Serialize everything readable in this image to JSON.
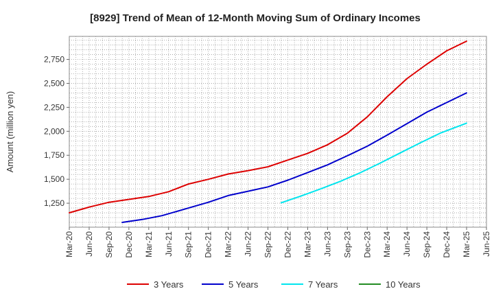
{
  "chart_data": {
    "type": "line",
    "title": "[8929]  Trend of Mean of 12-Month Moving Sum of Ordinary Incomes",
    "xlabel": "",
    "ylabel": "Amount (million yen)",
    "ylim": [
      1000,
      2990
    ],
    "yticks": [
      1250,
      1500,
      1750,
      2000,
      2250,
      2500,
      2750
    ],
    "ytick_labels": [
      "1,250",
      "1,500",
      "1,750",
      "2,000",
      "2,250",
      "2,500",
      "2,750"
    ],
    "xlim": [
      0,
      63
    ],
    "xtick_positions": [
      0,
      3,
      6,
      9,
      12,
      15,
      18,
      21,
      24,
      27,
      30,
      33,
      36,
      39,
      42,
      45,
      48,
      51,
      54,
      57,
      60,
      63
    ],
    "xtick_labels": [
      "Mar-20",
      "Jun-20",
      "Sep-20",
      "Dec-20",
      "Mar-21",
      "Jun-21",
      "Sep-21",
      "Dec-21",
      "Mar-22",
      "Jun-22",
      "Sep-22",
      "Dec-22",
      "Mar-23",
      "Jun-23",
      "Sep-23",
      "Dec-23",
      "Mar-24",
      "Jun-24",
      "Sep-24",
      "Dec-24",
      "Mar-25",
      "Jun-25"
    ],
    "grid": true,
    "legend_position": "bottom",
    "series": [
      {
        "name": "3 Years",
        "color": "#dd0000",
        "x": [
          0,
          3,
          6,
          9,
          12,
          15,
          18,
          21,
          24,
          27,
          30,
          33,
          36,
          39,
          42,
          45,
          48,
          51,
          54,
          57,
          60
        ],
        "values": [
          1150,
          1210,
          1260,
          1290,
          1320,
          1370,
          1450,
          1500,
          1555,
          1590,
          1630,
          1700,
          1770,
          1860,
          1980,
          2150,
          2360,
          2550,
          2700,
          2840,
          2940
        ]
      },
      {
        "name": "5 Years",
        "color": "#0000cc",
        "x": [
          8,
          11,
          14,
          18,
          21,
          24,
          27,
          30,
          33,
          36,
          39,
          42,
          45,
          48,
          51,
          54,
          57,
          60
        ],
        "values": [
          1050,
          1080,
          1120,
          1200,
          1260,
          1330,
          1375,
          1420,
          1490,
          1570,
          1650,
          1745,
          1845,
          1960,
          2080,
          2200,
          2300,
          2400
        ]
      },
      {
        "name": "7 Years",
        "color": "#00e5ee",
        "x": [
          32,
          35,
          38,
          41,
          44,
          47,
          50,
          53,
          56,
          60
        ],
        "values": [
          1255,
          1325,
          1400,
          1480,
          1570,
          1670,
          1775,
          1880,
          1980,
          2085
        ]
      },
      {
        "name": "10 Years",
        "color": "#228b22",
        "x": [],
        "values": []
      }
    ]
  }
}
